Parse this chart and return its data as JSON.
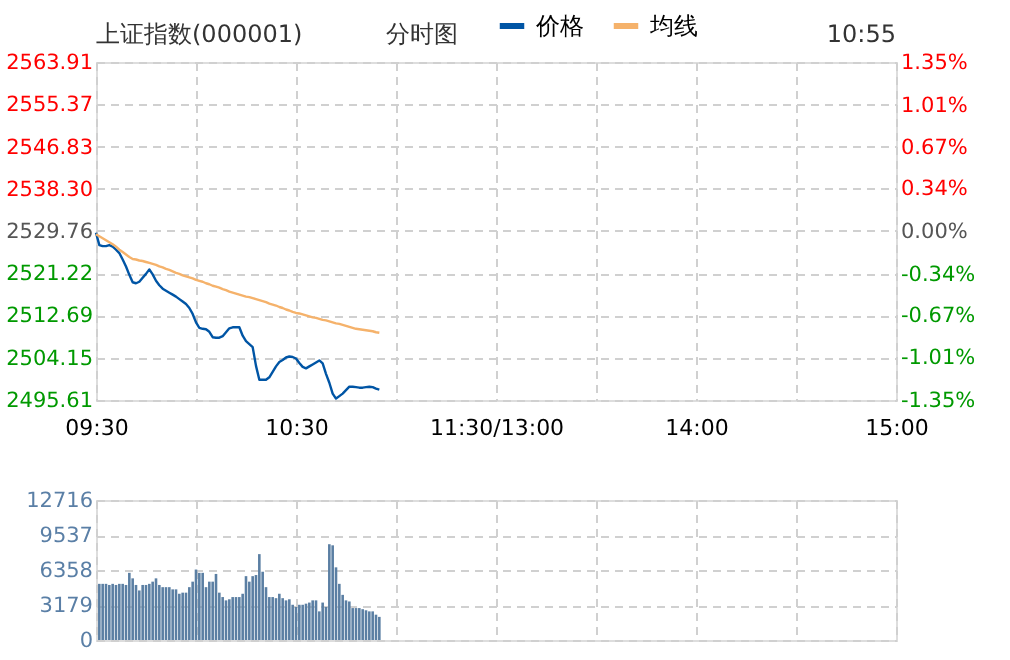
{
  "chart_data": [
    {
      "type": "line",
      "title": "上证指数(000001)",
      "subtitle": "分时图",
      "annotations": [
        "10:55"
      ],
      "legend": "top",
      "grid": true,
      "marker": "none",
      "categories": [
        "09:30",
        null,
        null,
        null,
        null,
        null,
        null,
        null,
        null,
        null,
        null,
        null,
        null,
        null,
        null,
        null,
        null,
        null,
        null,
        null,
        null,
        null,
        null,
        null,
        null,
        null,
        null,
        null,
        null,
        null,
        null,
        null,
        null,
        null,
        null,
        null,
        null,
        null,
        null,
        null,
        null,
        null,
        null,
        null,
        null,
        null,
        null,
        null,
        null,
        null,
        null,
        null,
        null,
        null,
        null,
        null,
        null,
        null,
        null,
        null,
        "10:30",
        null,
        null,
        null,
        null,
        null,
        null,
        null,
        null,
        null,
        null,
        null,
        null,
        null,
        null,
        null,
        null,
        null,
        null,
        null,
        null,
        null,
        null,
        null,
        null,
        null,
        null,
        null,
        null,
        null,
        null,
        null,
        null,
        null,
        null,
        null,
        null,
        null,
        null,
        null,
        null,
        null,
        null,
        null,
        null,
        null,
        null,
        null,
        null,
        null,
        null,
        null,
        null,
        null,
        null,
        null,
        null,
        null,
        null,
        null,
        "11:30/13:00",
        null,
        null,
        null,
        null,
        null,
        null,
        null,
        null,
        null,
        null,
        null,
        null,
        null,
        null,
        null,
        null,
        null,
        null,
        null,
        null,
        null,
        null,
        null,
        null,
        null,
        null,
        null,
        null,
        null,
        null,
        null,
        null,
        null,
        null,
        null,
        null,
        null,
        null,
        null,
        null,
        null,
        null,
        null,
        null,
        null,
        null,
        null,
        null,
        null,
        null,
        null,
        null,
        null,
        null,
        null,
        null,
        null,
        null,
        null,
        "14:00",
        null,
        null,
        null,
        null,
        null,
        null,
        null,
        null,
        null,
        null,
        null,
        null,
        null,
        null,
        null,
        null,
        null,
        null,
        null,
        null,
        null,
        null,
        null,
        null,
        null,
        null,
        null,
        null,
        null,
        null,
        null,
        null,
        null,
        null,
        null,
        null,
        null,
        null,
        null,
        null,
        null,
        null,
        null,
        null,
        null,
        null,
        null,
        null,
        null,
        null,
        null,
        null,
        null,
        null,
        null,
        null,
        null,
        null,
        null,
        "15:00"
      ],
      "ylim": [
        2495.61,
        2563.91
      ],
      "yticks": [
        2495.61,
        2504.15,
        2512.69,
        2521.22,
        2529.76,
        {
          "value": 2538.3,
          "label": "2538.30"
        },
        2546.83,
        2555.37,
        2563.91
      ],
      "y2lim": [
        -1.35,
        1.35
      ],
      "y2ticks": [
        {
          "value": -1.35,
          "label": "-1.35%"
        },
        {
          "value": -1.01,
          "label": "-1.01%"
        },
        {
          "value": -0.67,
          "label": "-0.67%"
        },
        {
          "value": -0.34,
          "label": "-0.34%"
        },
        {
          "value": 0,
          "label": "0.00%"
        },
        {
          "value": 0.34,
          "label": "0.34%"
        },
        {
          "value": 0.67,
          "label": "0.67%"
        },
        {
          "value": 1.01,
          "label": "1.01%"
        },
        {
          "value": 1.35,
          "label": "1.35%"
        }
      ],
      "series": [
        {
          "name": "价格",
          "color": "#0055a5",
          "values": [
            2529.4,
            2526.9,
            2526.7,
            2526.7,
            2526.9,
            2526.6,
            2526.0,
            2525.3,
            2524.0,
            2522.6,
            2520.9,
            2519.4,
            2519.2,
            2519.5,
            2520.3,
            2521.1,
            2522.0,
            2521.0,
            2519.7,
            2518.8,
            2518.1,
            2517.7,
            2517.3,
            2516.9,
            2516.5,
            2516.0,
            2515.5,
            2515.0,
            2514.2,
            2513.0,
            2511.3,
            2510.2,
            2510.0,
            2509.9,
            2509.4,
            2508.3,
            2508.2,
            2508.2,
            2508.5,
            2509.3,
            2510.1,
            2510.3,
            2510.3,
            2510.3,
            2508.6,
            2507.5,
            2506.9,
            2506.3,
            2502.5,
            2499.7,
            2499.7,
            2499.7,
            2500.2,
            2501.3,
            2502.4,
            2503.3,
            2503.7,
            2504.2,
            2504.4,
            2504.3,
            2504.0,
            2503.1,
            2502.3,
            2502.0,
            2502.4,
            2502.8,
            2503.2,
            2503.6,
            2503.0,
            2500.9,
            2499.1,
            2496.9,
            2495.9,
            2496.4,
            2496.9,
            2497.6,
            2498.3,
            2498.3,
            2498.2,
            2498.1,
            2498.1,
            2498.2,
            2498.3,
            2498.2,
            2497.9,
            2497.7,
            null,
            null,
            null,
            null,
            null,
            null,
            null,
            null,
            null,
            null,
            null,
            null,
            null,
            null,
            null,
            null,
            null,
            null,
            null,
            null,
            null,
            null,
            null,
            null,
            null,
            null,
            null,
            null,
            null,
            null,
            null,
            null,
            null,
            null,
            null,
            null,
            null,
            null,
            null,
            null,
            null,
            null,
            null,
            null,
            null,
            null,
            null,
            null,
            null,
            null,
            null,
            null,
            null,
            null,
            null,
            null,
            null,
            null,
            null,
            null,
            null,
            null,
            null,
            null,
            null,
            null,
            null,
            null,
            null,
            null,
            null,
            null,
            null,
            null,
            null,
            null,
            null,
            null,
            null,
            null,
            null,
            null,
            null,
            null,
            null,
            null,
            null,
            null,
            null,
            null,
            null,
            null,
            null,
            null,
            null,
            null,
            null,
            null,
            null,
            null,
            null,
            null,
            null,
            null,
            null,
            null,
            null,
            null,
            null,
            null,
            null,
            null,
            null,
            null,
            null,
            null,
            null,
            null,
            null,
            null,
            null,
            null,
            null,
            null,
            null,
            null,
            null,
            null,
            null,
            null,
            null,
            null,
            null,
            null,
            null,
            null,
            null,
            null,
            null,
            null,
            null,
            null,
            null,
            null,
            null,
            null,
            null,
            null,
            null,
            null,
            null,
            null,
            null,
            null,
            null
          ]
        },
        {
          "name": "均线",
          "color": "#f5b26b",
          "values": [
            2529.1,
            2528.7,
            2528.3,
            2527.9,
            2527.5,
            2527.1,
            2526.6,
            2526.0,
            2525.5,
            2525.0,
            2524.5,
            2524.1,
            2524.0,
            2523.8,
            2523.7,
            2523.5,
            2523.3,
            2523.1,
            2522.9,
            2522.6,
            2522.4,
            2522.1,
            2521.9,
            2521.6,
            2521.3,
            2521.1,
            2520.8,
            2520.6,
            2520.4,
            2520.2,
            2519.9,
            2519.7,
            2519.5,
            2519.2,
            2519.0,
            2518.7,
            2518.5,
            2518.3,
            2518.0,
            2517.8,
            2517.5,
            2517.3,
            2517.1,
            2516.9,
            2516.7,
            2516.5,
            2516.4,
            2516.2,
            2516.0,
            2515.8,
            2515.6,
            2515.4,
            2515.1,
            2514.9,
            2514.7,
            2514.4,
            2514.2,
            2513.9,
            2513.7,
            2513.4,
            2513.2,
            2513.1,
            2512.9,
            2512.7,
            2512.5,
            2512.3,
            2512.2,
            2512.0,
            2511.8,
            2511.7,
            2511.5,
            2511.3,
            2511.1,
            2511.0,
            2510.8,
            2510.6,
            2510.4,
            2510.2,
            2510.0,
            2509.9,
            2509.8,
            2509.7,
            2509.6,
            2509.5,
            2509.3,
            2509.2,
            null,
            null,
            null,
            null,
            null,
            null,
            null,
            null,
            null,
            null,
            null,
            null,
            null,
            null,
            null,
            null,
            null,
            null,
            null,
            null,
            null,
            null,
            null,
            null,
            null,
            null,
            null,
            null,
            null,
            null,
            null,
            null,
            null,
            null,
            null,
            null,
            null,
            null,
            null,
            null,
            null,
            null,
            null,
            null,
            null,
            null,
            null,
            null,
            null,
            null,
            null,
            null,
            null,
            null,
            null,
            null,
            null,
            null,
            null,
            null,
            null,
            null,
            null,
            null,
            null,
            null,
            null,
            null,
            null,
            null,
            null,
            null,
            null,
            null,
            null,
            null,
            null,
            null,
            null,
            null,
            null,
            null,
            null,
            null,
            null,
            null,
            null,
            null,
            null,
            null,
            null,
            null,
            null,
            null,
            null,
            null,
            null,
            null,
            null,
            null,
            null,
            null,
            null,
            null,
            null,
            null,
            null,
            null,
            null,
            null,
            null,
            null,
            null,
            null,
            null,
            null,
            null,
            null,
            null,
            null,
            null,
            null,
            null,
            null,
            null,
            null,
            null,
            null,
            null,
            null,
            null,
            null,
            null,
            null,
            null,
            null,
            null,
            null,
            null,
            null,
            null,
            null,
            null,
            null,
            null,
            null,
            null,
            null,
            null,
            null,
            null,
            null,
            null,
            null,
            null
          ]
        }
      ]
    },
    {
      "type": "bar",
      "grid": true,
      "tick_labels": "y",
      "categories": [
        null,
        null,
        null,
        null,
        null,
        null,
        null,
        null,
        null,
        null,
        null,
        null,
        null,
        null,
        null,
        null,
        null,
        null,
        null,
        null,
        null,
        null,
        null,
        null,
        null,
        null,
        null,
        null,
        null,
        null,
        null,
        null,
        null,
        null,
        null,
        null,
        null,
        null,
        null,
        null,
        null,
        null,
        null,
        null,
        null,
        null,
        null,
        null,
        null,
        null,
        null,
        null,
        null,
        null,
        null,
        null,
        null,
        null,
        null,
        null,
        null,
        null,
        null,
        null,
        null,
        null,
        null,
        null,
        null,
        null,
        null,
        null,
        null,
        null,
        null,
        null,
        null,
        null,
        null,
        null,
        null,
        null,
        null,
        null,
        null,
        null,
        null,
        null,
        null,
        null,
        null,
        null,
        null,
        null,
        null,
        null,
        null,
        null,
        null,
        null,
        null,
        null,
        null,
        null,
        null,
        null,
        null,
        null,
        null,
        null,
        null,
        null,
        null,
        null,
        null,
        null,
        null,
        null,
        null,
        null,
        null,
        null,
        null,
        null,
        null,
        null,
        null,
        null,
        null,
        null,
        null,
        null,
        null,
        null,
        null,
        null,
        null,
        null,
        null,
        null,
        null,
        null,
        null,
        null,
        null,
        null,
        null,
        null,
        null,
        null,
        null,
        null,
        null,
        null,
        null,
        null,
        null,
        null,
        null,
        null,
        null,
        null,
        null,
        null,
        null,
        null,
        null,
        null,
        null,
        null,
        null,
        null,
        null,
        null,
        null,
        null,
        null,
        null,
        null,
        null,
        null,
        null,
        null,
        null,
        null,
        null,
        null,
        null,
        null,
        null,
        null,
        null,
        null,
        null,
        null,
        null,
        null,
        null,
        null,
        null,
        null,
        null,
        null,
        null,
        null,
        null,
        null,
        null,
        null,
        null,
        null,
        null,
        null,
        null,
        null,
        null,
        null,
        null,
        null,
        null,
        null,
        null,
        null,
        null,
        null,
        null,
        null,
        null,
        null,
        null,
        null,
        null,
        null,
        null,
        null,
        null,
        null,
        null,
        null,
        null,
        null
      ],
      "ylim": [
        0,
        12716
      ],
      "yticks": [
        0,
        3179,
        6358,
        9537,
        12716
      ],
      "series": [
        {
          "color": "#5b7fa3",
          "values": [
            null,
            5100,
            5100,
            5100,
            5000,
            5100,
            5000,
            5100,
            5100,
            5000,
            6100,
            5600,
            5000,
            4500,
            5000,
            5000,
            5100,
            5300,
            5600,
            5000,
            4800,
            4800,
            4800,
            4600,
            4600,
            4200,
            4300,
            4300,
            4800,
            5300,
            6400,
            6100,
            6100,
            4800,
            5300,
            5300,
            6000,
            4300,
            3900,
            3600,
            3700,
            3900,
            3900,
            3900,
            4200,
            5800,
            5300,
            5800,
            5900,
            7800,
            6200,
            4800,
            3900,
            3900,
            3800,
            4200,
            3800,
            3600,
            3700,
            3200,
            3000,
            3200,
            3200,
            3300,
            3400,
            3600,
            3600,
            2600,
            3400,
            3000,
            8700,
            8600,
            6600,
            5100,
            4100,
            3600,
            3500,
            2900,
            2900,
            2900,
            2800,
            2700,
            2600,
            2600,
            2300,
            2100,
            null,
            null,
            null,
            null,
            null,
            null,
            null,
            null,
            null,
            null,
            null,
            null,
            null,
            null,
            null,
            null,
            null,
            null,
            null,
            null,
            null,
            null,
            null,
            null,
            null,
            null,
            null,
            null,
            null,
            null,
            null,
            null,
            null,
            null,
            null,
            null,
            null,
            null,
            null,
            null,
            null,
            null,
            null,
            null,
            null,
            null,
            null,
            null,
            null,
            null,
            null,
            null,
            null,
            null,
            null,
            null,
            null,
            null,
            null,
            null,
            null,
            null,
            null,
            null,
            null,
            null,
            null,
            null,
            null,
            null,
            null,
            null,
            null,
            null,
            null,
            null,
            null,
            null,
            null,
            null,
            null,
            null,
            null,
            null,
            null,
            null,
            null,
            null,
            null,
            null,
            null,
            null,
            null,
            null,
            null,
            null,
            null,
            null,
            null,
            null,
            null,
            null,
            null,
            null,
            null,
            null,
            null,
            null,
            null,
            null,
            null,
            null,
            null,
            null,
            null,
            null,
            null,
            null,
            null,
            null,
            null,
            null,
            null,
            null,
            null,
            null,
            null,
            null,
            null,
            null,
            null,
            null,
            null,
            null,
            null,
            null,
            null,
            null,
            null,
            null,
            null,
            null,
            null,
            null,
            null,
            null,
            null,
            null,
            null,
            null,
            null,
            null,
            null,
            null,
            null
          ]
        }
      ]
    }
  ]
}
